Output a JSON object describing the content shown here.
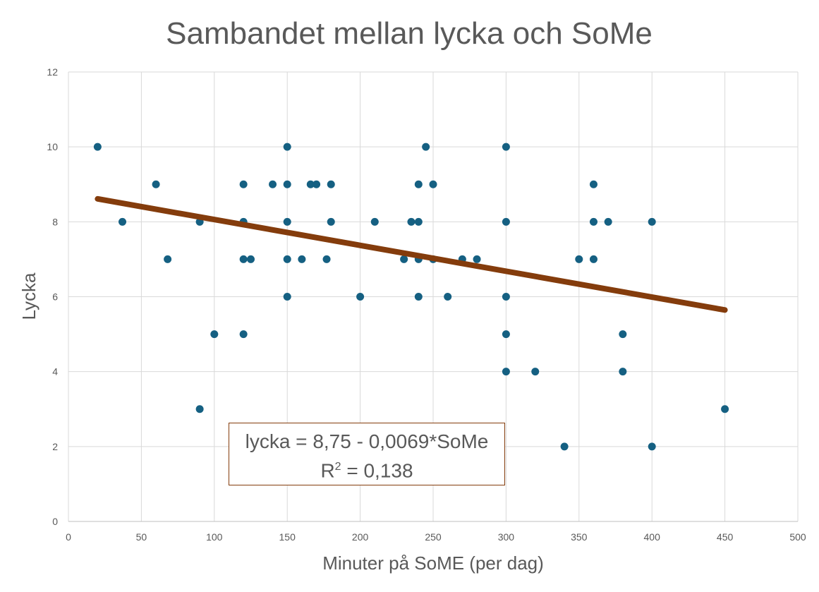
{
  "chart_data": {
    "type": "scatter",
    "title": "Sambandet mellan lycka och SoMe",
    "xlabel": "Minuter på SoME (per dag)",
    "ylabel": "Lycka",
    "xlim": [
      0,
      500
    ],
    "ylim": [
      0,
      12
    ],
    "xticks": [
      0,
      50,
      100,
      150,
      200,
      250,
      300,
      350,
      400,
      450,
      500
    ],
    "yticks": [
      0,
      2,
      4,
      6,
      8,
      10,
      12
    ],
    "grid": true,
    "marker_color": "#156082",
    "trend_color": "#843c0c",
    "points": [
      [
        20,
        10
      ],
      [
        37,
        8
      ],
      [
        60,
        9
      ],
      [
        68,
        7
      ],
      [
        90,
        8
      ],
      [
        90,
        3
      ],
      [
        100,
        5
      ],
      [
        120,
        9
      ],
      [
        120,
        8
      ],
      [
        120,
        7
      ],
      [
        120,
        5
      ],
      [
        125,
        7
      ],
      [
        140,
        9
      ],
      [
        150,
        10
      ],
      [
        150,
        9
      ],
      [
        150,
        8
      ],
      [
        150,
        7
      ],
      [
        150,
        6
      ],
      [
        160,
        7
      ],
      [
        166,
        9
      ],
      [
        170,
        9
      ],
      [
        177,
        7
      ],
      [
        180,
        9
      ],
      [
        180,
        8
      ],
      [
        200,
        6
      ],
      [
        210,
        8
      ],
      [
        230,
        7
      ],
      [
        235,
        8
      ],
      [
        240,
        9
      ],
      [
        240,
        8
      ],
      [
        240,
        7
      ],
      [
        240,
        6
      ],
      [
        245,
        10
      ],
      [
        250,
        9
      ],
      [
        250,
        7
      ],
      [
        260,
        6
      ],
      [
        270,
        7
      ],
      [
        280,
        7
      ],
      [
        300,
        10
      ],
      [
        300,
        8
      ],
      [
        300,
        6
      ],
      [
        300,
        5
      ],
      [
        300,
        4
      ],
      [
        320,
        4
      ],
      [
        340,
        2
      ],
      [
        350,
        7
      ],
      [
        360,
        9
      ],
      [
        360,
        8
      ],
      [
        360,
        7
      ],
      [
        370,
        8
      ],
      [
        380,
        5
      ],
      [
        380,
        4
      ],
      [
        400,
        8
      ],
      [
        400,
        2
      ],
      [
        450,
        3
      ]
    ],
    "trendline": {
      "intercept": 8.75,
      "slope": -0.0069,
      "x_range": [
        20,
        450
      ]
    },
    "annotation": {
      "equation": "lycka = 8,75 - 0,0069*SoMe",
      "r2_label": "R",
      "r2_sup": "2",
      "r2_value": " = 0,138"
    }
  }
}
